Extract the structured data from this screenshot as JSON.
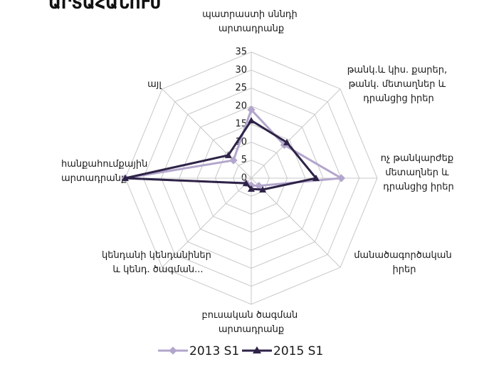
{
  "chart_data": {
    "type": "radar",
    "title": "ԱՐՏԱՀԱՆՈՒՄ",
    "categories": [
      "պատրաստի սննդի արտադրանք",
      "թանկ.և կիս. քարեր, թանկ. մետաղներ և դրանցից իրեր",
      "ոչ թանկարժեք մետաղներ և դրանցից իրեր",
      "մանածագործական իրեր",
      "բուսական ծագման արտադրանք",
      "կենդանի կենդանիներ և կենդ. ծագման...",
      "հանքահումքային արտադրանք",
      "այլ"
    ],
    "series": [
      {
        "name": "2013 S1",
        "color": "#b3a6cc",
        "values": [
          19,
          13,
          25,
          3,
          2,
          2,
          35,
          7
        ]
      },
      {
        "name": "2015 S1",
        "color": "#2e2347",
        "values": [
          16,
          14,
          18,
          4.5,
          3,
          2,
          35,
          9
        ]
      }
    ],
    "ylim": [
      0,
      35
    ],
    "yticks": [
      0,
      5,
      10,
      15,
      20,
      25,
      30,
      35
    ],
    "grid": true,
    "legend": "bottom"
  }
}
